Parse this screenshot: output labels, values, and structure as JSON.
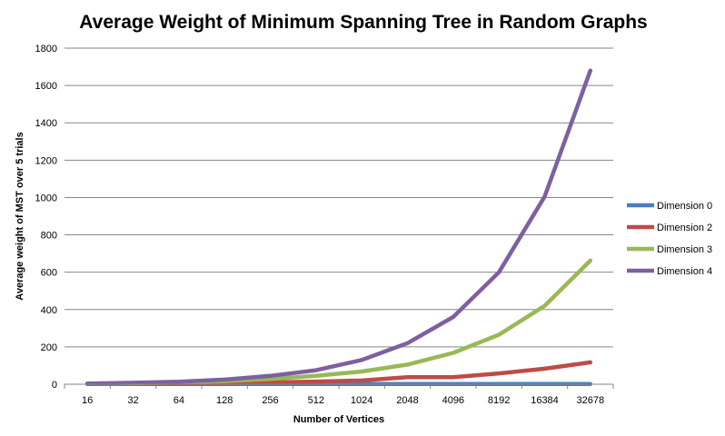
{
  "chart_data": {
    "type": "line",
    "title": "Average Weight of Minimum Spanning Tree in Random Graphs",
    "xlabel": "Number of Vertices",
    "ylabel": "Average weight of MST over 5 trials",
    "categories": [
      "16",
      "32",
      "64",
      "128",
      "256",
      "512",
      "1024",
      "2048",
      "4096",
      "8192",
      "16384",
      "32678"
    ],
    "ylim": [
      0,
      1800
    ],
    "yticks": [
      0,
      200,
      400,
      600,
      800,
      1000,
      1200,
      1400,
      1600,
      1800
    ],
    "grid": true,
    "legend_position": "right",
    "series": [
      {
        "name": "Dimension 0",
        "color": "#4a7ebb",
        "values": [
          1,
          1,
          1,
          1,
          1,
          1,
          1,
          1,
          1,
          1,
          1,
          1
        ]
      },
      {
        "name": "Dimension 2",
        "color": "#be4b48",
        "values": [
          3,
          4,
          5,
          7,
          10,
          14,
          20,
          38,
          38,
          58,
          83,
          117
        ]
      },
      {
        "name": "Dimension 3",
        "color": "#98b954",
        "values": [
          3,
          6,
          9,
          17,
          28,
          45,
          68,
          105,
          168,
          265,
          420,
          662
        ]
      },
      {
        "name": "Dimension 4",
        "color": "#7d60a0",
        "values": [
          4,
          8,
          13,
          25,
          45,
          75,
          130,
          220,
          360,
          600,
          1005,
          1680
        ]
      }
    ]
  }
}
